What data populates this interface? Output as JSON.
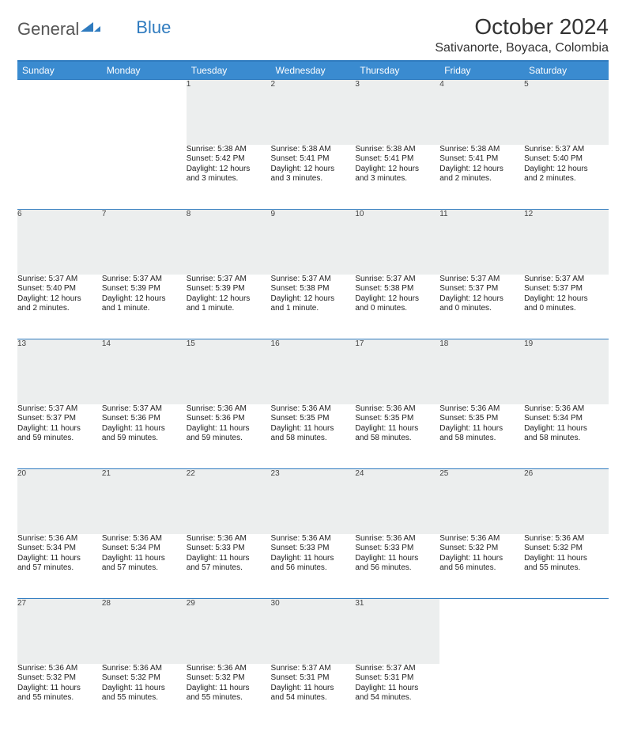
{
  "brand": {
    "part1": "General",
    "part2": "Blue"
  },
  "title": "October 2024",
  "location": "Sativanorte, Boyaca, Colombia",
  "colors": {
    "header_bg": "#3a8bd0",
    "header_text": "#ffffff",
    "rule": "#2f7bbf",
    "daynum_bg": "#eceeee",
    "page_bg": "#ffffff"
  },
  "weekdays": [
    "Sunday",
    "Monday",
    "Tuesday",
    "Wednesday",
    "Thursday",
    "Friday",
    "Saturday"
  ],
  "weeks": [
    [
      null,
      null,
      {
        "n": "1",
        "sr": "Sunrise: 5:38 AM",
        "ss": "Sunset: 5:42 PM",
        "dl1": "Daylight: 12 hours",
        "dl2": "and 3 minutes."
      },
      {
        "n": "2",
        "sr": "Sunrise: 5:38 AM",
        "ss": "Sunset: 5:41 PM",
        "dl1": "Daylight: 12 hours",
        "dl2": "and 3 minutes."
      },
      {
        "n": "3",
        "sr": "Sunrise: 5:38 AM",
        "ss": "Sunset: 5:41 PM",
        "dl1": "Daylight: 12 hours",
        "dl2": "and 3 minutes."
      },
      {
        "n": "4",
        "sr": "Sunrise: 5:38 AM",
        "ss": "Sunset: 5:41 PM",
        "dl1": "Daylight: 12 hours",
        "dl2": "and 2 minutes."
      },
      {
        "n": "5",
        "sr": "Sunrise: 5:37 AM",
        "ss": "Sunset: 5:40 PM",
        "dl1": "Daylight: 12 hours",
        "dl2": "and 2 minutes."
      }
    ],
    [
      {
        "n": "6",
        "sr": "Sunrise: 5:37 AM",
        "ss": "Sunset: 5:40 PM",
        "dl1": "Daylight: 12 hours",
        "dl2": "and 2 minutes."
      },
      {
        "n": "7",
        "sr": "Sunrise: 5:37 AM",
        "ss": "Sunset: 5:39 PM",
        "dl1": "Daylight: 12 hours",
        "dl2": "and 1 minute."
      },
      {
        "n": "8",
        "sr": "Sunrise: 5:37 AM",
        "ss": "Sunset: 5:39 PM",
        "dl1": "Daylight: 12 hours",
        "dl2": "and 1 minute."
      },
      {
        "n": "9",
        "sr": "Sunrise: 5:37 AM",
        "ss": "Sunset: 5:38 PM",
        "dl1": "Daylight: 12 hours",
        "dl2": "and 1 minute."
      },
      {
        "n": "10",
        "sr": "Sunrise: 5:37 AM",
        "ss": "Sunset: 5:38 PM",
        "dl1": "Daylight: 12 hours",
        "dl2": "and 0 minutes."
      },
      {
        "n": "11",
        "sr": "Sunrise: 5:37 AM",
        "ss": "Sunset: 5:37 PM",
        "dl1": "Daylight: 12 hours",
        "dl2": "and 0 minutes."
      },
      {
        "n": "12",
        "sr": "Sunrise: 5:37 AM",
        "ss": "Sunset: 5:37 PM",
        "dl1": "Daylight: 12 hours",
        "dl2": "and 0 minutes."
      }
    ],
    [
      {
        "n": "13",
        "sr": "Sunrise: 5:37 AM",
        "ss": "Sunset: 5:37 PM",
        "dl1": "Daylight: 11 hours",
        "dl2": "and 59 minutes."
      },
      {
        "n": "14",
        "sr": "Sunrise: 5:37 AM",
        "ss": "Sunset: 5:36 PM",
        "dl1": "Daylight: 11 hours",
        "dl2": "and 59 minutes."
      },
      {
        "n": "15",
        "sr": "Sunrise: 5:36 AM",
        "ss": "Sunset: 5:36 PM",
        "dl1": "Daylight: 11 hours",
        "dl2": "and 59 minutes."
      },
      {
        "n": "16",
        "sr": "Sunrise: 5:36 AM",
        "ss": "Sunset: 5:35 PM",
        "dl1": "Daylight: 11 hours",
        "dl2": "and 58 minutes."
      },
      {
        "n": "17",
        "sr": "Sunrise: 5:36 AM",
        "ss": "Sunset: 5:35 PM",
        "dl1": "Daylight: 11 hours",
        "dl2": "and 58 minutes."
      },
      {
        "n": "18",
        "sr": "Sunrise: 5:36 AM",
        "ss": "Sunset: 5:35 PM",
        "dl1": "Daylight: 11 hours",
        "dl2": "and 58 minutes."
      },
      {
        "n": "19",
        "sr": "Sunrise: 5:36 AM",
        "ss": "Sunset: 5:34 PM",
        "dl1": "Daylight: 11 hours",
        "dl2": "and 58 minutes."
      }
    ],
    [
      {
        "n": "20",
        "sr": "Sunrise: 5:36 AM",
        "ss": "Sunset: 5:34 PM",
        "dl1": "Daylight: 11 hours",
        "dl2": "and 57 minutes."
      },
      {
        "n": "21",
        "sr": "Sunrise: 5:36 AM",
        "ss": "Sunset: 5:34 PM",
        "dl1": "Daylight: 11 hours",
        "dl2": "and 57 minutes."
      },
      {
        "n": "22",
        "sr": "Sunrise: 5:36 AM",
        "ss": "Sunset: 5:33 PM",
        "dl1": "Daylight: 11 hours",
        "dl2": "and 57 minutes."
      },
      {
        "n": "23",
        "sr": "Sunrise: 5:36 AM",
        "ss": "Sunset: 5:33 PM",
        "dl1": "Daylight: 11 hours",
        "dl2": "and 56 minutes."
      },
      {
        "n": "24",
        "sr": "Sunrise: 5:36 AM",
        "ss": "Sunset: 5:33 PM",
        "dl1": "Daylight: 11 hours",
        "dl2": "and 56 minutes."
      },
      {
        "n": "25",
        "sr": "Sunrise: 5:36 AM",
        "ss": "Sunset: 5:32 PM",
        "dl1": "Daylight: 11 hours",
        "dl2": "and 56 minutes."
      },
      {
        "n": "26",
        "sr": "Sunrise: 5:36 AM",
        "ss": "Sunset: 5:32 PM",
        "dl1": "Daylight: 11 hours",
        "dl2": "and 55 minutes."
      }
    ],
    [
      {
        "n": "27",
        "sr": "Sunrise: 5:36 AM",
        "ss": "Sunset: 5:32 PM",
        "dl1": "Daylight: 11 hours",
        "dl2": "and 55 minutes."
      },
      {
        "n": "28",
        "sr": "Sunrise: 5:36 AM",
        "ss": "Sunset: 5:32 PM",
        "dl1": "Daylight: 11 hours",
        "dl2": "and 55 minutes."
      },
      {
        "n": "29",
        "sr": "Sunrise: 5:36 AM",
        "ss": "Sunset: 5:32 PM",
        "dl1": "Daylight: 11 hours",
        "dl2": "and 55 minutes."
      },
      {
        "n": "30",
        "sr": "Sunrise: 5:37 AM",
        "ss": "Sunset: 5:31 PM",
        "dl1": "Daylight: 11 hours",
        "dl2": "and 54 minutes."
      },
      {
        "n": "31",
        "sr": "Sunrise: 5:37 AM",
        "ss": "Sunset: 5:31 PM",
        "dl1": "Daylight: 11 hours",
        "dl2": "and 54 minutes."
      },
      null,
      null
    ]
  ]
}
